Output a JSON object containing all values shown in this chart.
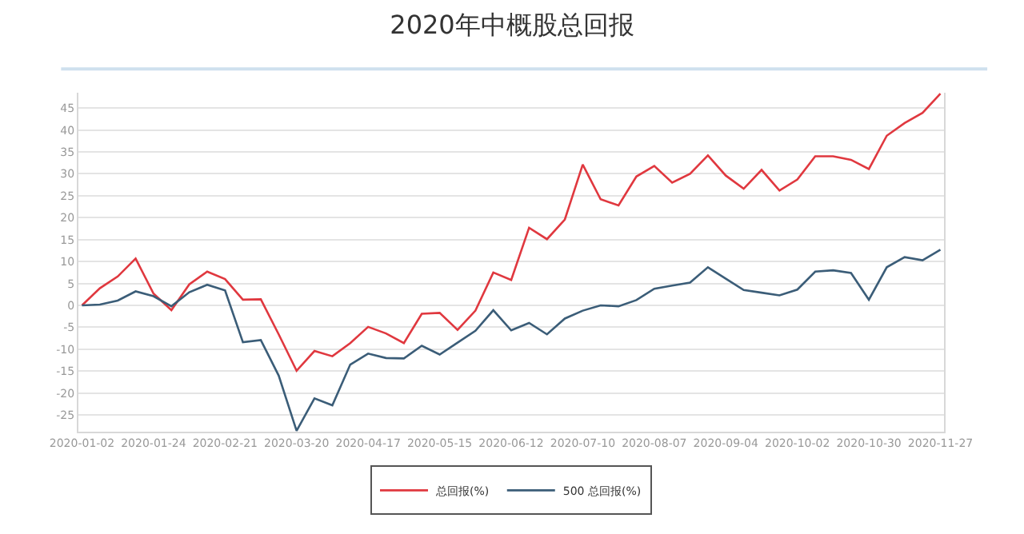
{
  "chart_data": {
    "type": "line",
    "title": "2020年中概股总回报",
    "categories": [
      "2020-01-02",
      null,
      null,
      null,
      "2020-01-24",
      null,
      null,
      null,
      "2020-02-21",
      null,
      null,
      null,
      "2020-03-20",
      null,
      null,
      null,
      "2020-04-17",
      null,
      null,
      null,
      "2020-05-15",
      null,
      null,
      null,
      "2020-06-12",
      null,
      null,
      null,
      "2020-07-10",
      null,
      null,
      null,
      "2020-08-07",
      null,
      null,
      null,
      "2020-09-04",
      null,
      null,
      null,
      "2020-10-02",
      null,
      null,
      null,
      "2020-10-30",
      null,
      null,
      null,
      "2020-11-27"
    ],
    "series": [
      {
        "name": "总回报(%)",
        "color": "#e0383f",
        "values": [
          0,
          3.9,
          6.6,
          10.7,
          2.7,
          -1.1,
          4.8,
          7.7,
          6.0,
          1.3,
          1.4,
          -6.6,
          -14.9,
          -10.4,
          -11.6,
          -8.6,
          -4.9,
          -6.4,
          -8.6,
          -1.9,
          -1.7,
          -5.6,
          -1.2,
          7.5,
          5.8,
          17.7,
          15.1,
          19.6,
          32.1,
          24.2,
          22.8,
          29.4,
          31.8,
          28.0,
          30.0,
          34.2,
          29.6,
          26.6,
          30.9,
          26.2,
          28.7,
          34.0,
          34.0,
          33.2,
          31.1,
          38.7,
          41.6,
          43.9,
          48.3
        ]
      },
      {
        "name": "500 总回报(%)",
        "color": "#3b5d78",
        "values": [
          0,
          0.2,
          1.1,
          3.2,
          2.1,
          -0.2,
          3.0,
          4.7,
          3.4,
          -8.4,
          -7.9,
          -16.0,
          -28.6,
          -21.2,
          -22.8,
          -13.5,
          -11.0,
          -12.0,
          -12.1,
          -9.2,
          -11.2,
          -8.5,
          -5.8,
          -1.1,
          -5.7,
          -4.0,
          -6.6,
          -3.0,
          -1.2,
          0,
          -0.2,
          1.2,
          3.8,
          4.5,
          5.2,
          8.7,
          6.1,
          3.5,
          2.9,
          2.3,
          3.6,
          7.7,
          8.0,
          7.4,
          1.3,
          8.7,
          11.0,
          10.3,
          12.7
        ]
      }
    ],
    "ylim": [
      -28.8,
      48.5
    ],
    "yticks": [
      -25,
      -20,
      -15,
      -10,
      -5,
      0,
      5,
      10,
      15,
      20,
      25,
      30,
      35,
      40,
      45
    ],
    "grid": "y",
    "legend": "bottom",
    "marker": "none",
    "line_style": "solid"
  }
}
